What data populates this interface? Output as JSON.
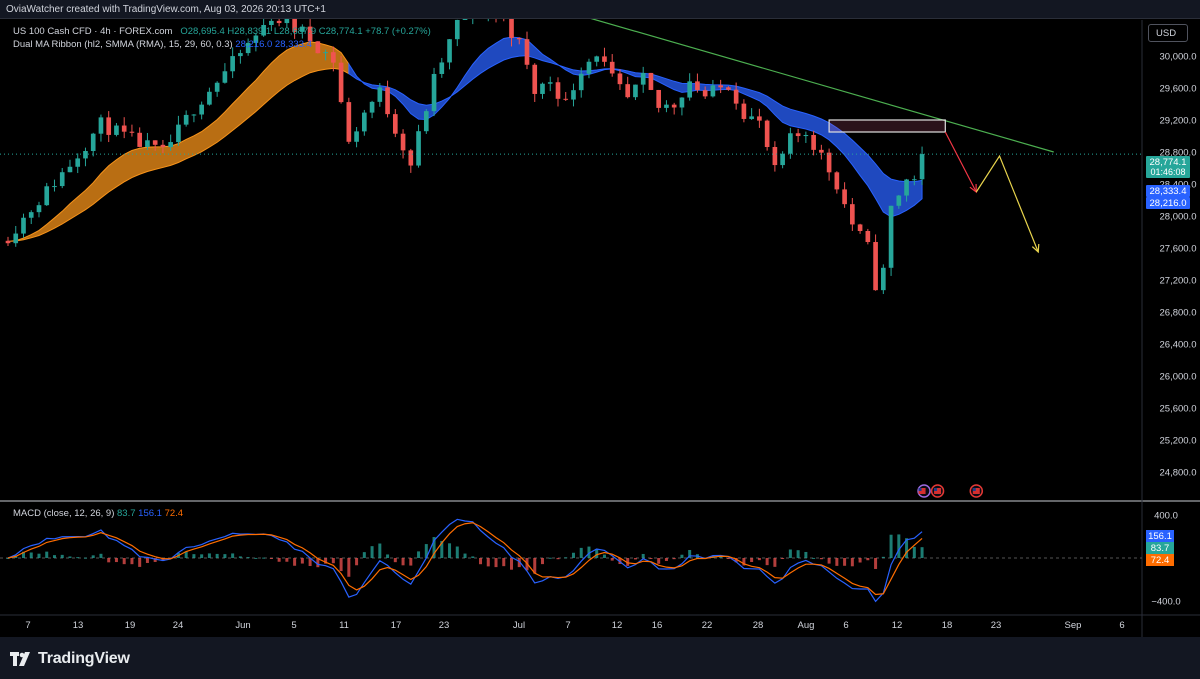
{
  "header": {
    "creator_line": "OviaWatcher created with TradingView.com, Aug 03, 2026 20:13 UTC+1"
  },
  "legend": {
    "symbol": "US 100 Cash CFD · 4h · FOREX.com",
    "ohlc": {
      "o": "O28,695.4",
      "h": "H28,839.1",
      "l": "L28,687.9",
      "c": "C28,774.1",
      "change": "+78.7 (+0.27%)"
    },
    "ribbon": "Dual MA Ribbon (hl2, SMMA (RMA), 15, 29, 60, 0.3)",
    "ribbon_values": [
      "28,216.0",
      "28,333.4"
    ],
    "macd": "MACD (close, 12, 26, 9)",
    "macd_values": [
      "83.7",
      "156.1",
      "72.4"
    ]
  },
  "currency_button": "USD",
  "footer": {
    "brand": "TradingView"
  },
  "colors": {
    "up": "#26a69a",
    "down": "#ef5350",
    "ribbon_orange": "#f7931a",
    "ribbon_blue": "#2962ff",
    "trendline": "#4caf50",
    "arrow_down": "#f23645",
    "arrow_path": "#e8d44d",
    "zone": "#f06292"
  },
  "chart_data": {
    "type": "candlestick",
    "timeframe": "4h",
    "price_axis": {
      "ticks": [
        24800,
        25200,
        25600,
        26000,
        26400,
        26800,
        27200,
        27600,
        28000,
        28400,
        28800,
        29200,
        29600,
        30000
      ],
      "tick_labels": [
        "24,800.0",
        "25,200.0",
        "25,600.0",
        "26,000.0",
        "26,400.0",
        "26,800.0",
        "27,200.0",
        "27,600.0",
        "28,000.0",
        "28,400.0",
        "28,800.0",
        "29,200.0",
        "29,600.0",
        "30,000.0"
      ],
      "ylim": [
        24450,
        30450
      ]
    },
    "time_axis": {
      "labels": [
        "7",
        "13",
        "19",
        "24",
        "Jun",
        "5",
        "11",
        "17",
        "23",
        "Jul",
        "7",
        "12",
        "16",
        "22",
        "28",
        "Aug",
        "6",
        "12",
        "18",
        "23",
        "Sep",
        "6"
      ],
      "xlim": [
        0,
        134
      ],
      "label_positions": [
        2,
        10,
        18,
        26,
        34,
        42,
        50,
        58,
        66,
        74,
        82,
        90,
        98,
        106,
        114,
        118,
        124,
        132,
        140,
        148,
        156,
        164
      ]
    },
    "close_path": [
      [
        0,
        27750
      ],
      [
        4,
        28200
      ],
      [
        8,
        28650
      ],
      [
        12,
        29150
      ],
      [
        16,
        28950
      ],
      [
        20,
        28780
      ],
      [
        24,
        29350
      ],
      [
        28,
        29800
      ],
      [
        32,
        30250
      ],
      [
        34,
        30500
      ],
      [
        38,
        30300
      ],
      [
        42,
        29950
      ],
      [
        44,
        28900
      ],
      [
        46,
        29300
      ],
      [
        48,
        29550
      ],
      [
        50,
        29100
      ],
      [
        52,
        28650
      ],
      [
        55,
        29700
      ],
      [
        58,
        30400
      ],
      [
        60,
        30600
      ],
      [
        64,
        30450
      ],
      [
        66,
        30150
      ],
      [
        68,
        29550
      ],
      [
        70,
        29700
      ],
      [
        72,
        29400
      ],
      [
        74,
        29850
      ],
      [
        76,
        30050
      ],
      [
        78,
        29700
      ],
      [
        80,
        29450
      ],
      [
        82,
        29700
      ],
      [
        84,
        29350
      ],
      [
        86,
        29400
      ],
      [
        88,
        29700
      ],
      [
        90,
        29500
      ],
      [
        93,
        29650
      ],
      [
        95,
        29300
      ],
      [
        97,
        29150
      ],
      [
        99,
        28550
      ],
      [
        101,
        28950
      ],
      [
        103,
        29050
      ],
      [
        105,
        28750
      ],
      [
        107,
        28400
      ],
      [
        109,
        27900
      ],
      [
        111,
        27600
      ],
      [
        112,
        27150
      ],
      [
        113,
        27300
      ],
      [
        114,
        28100
      ],
      [
        116,
        28450
      ],
      [
        117,
        28500
      ],
      [
        118,
        28774.1
      ]
    ],
    "last_candle_index": 118,
    "last_price": 28774.1,
    "price_labels": [
      {
        "label": "28,774.1",
        "countdown": "01:46:08",
        "color": "#26a69a"
      },
      {
        "label": "28,333.4",
        "color": "#2962ff"
      },
      {
        "label": "28,216.0",
        "color": "#2962ff"
      }
    ],
    "ribbon_orange": {
      "until_index": 44,
      "fast_slow_offset": 200
    },
    "ribbon_blue": {
      "from_index": 44,
      "fast_slow_offset": 200
    },
    "resistance_line": {
      "from": [
        67,
        30700
      ],
      "to": [
        135,
        28800
      ]
    },
    "supply_zone": {
      "from_index": 106,
      "to_index": 121,
      "low": 29050,
      "high": 29200
    },
    "projection_red": [
      [
        121,
        29050
      ],
      [
        125,
        28300
      ]
    ],
    "projection_yellow": [
      [
        125,
        28300
      ],
      [
        128,
        28750
      ],
      [
        133,
        27550
      ]
    ],
    "macd": {
      "ylim": [
        -520,
        520
      ],
      "ticks": [
        400,
        -400
      ],
      "tick_labels": [
        "400.0",
        "−400.0"
      ],
      "labels": [
        {
          "label": "156.1",
          "color": "#2962ff"
        },
        {
          "label": "83.7",
          "color": "#26a69a"
        },
        {
          "label": "72.4",
          "color": "#ff6d00"
        }
      ]
    }
  }
}
